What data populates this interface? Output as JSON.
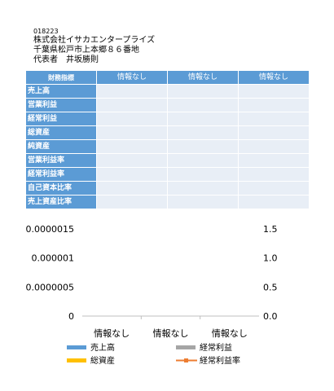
{
  "company": {
    "code": "018223",
    "name": "株式会社イサカエンタープライズ",
    "address": "千葉県松戸市上本郷８６番地",
    "representative": "代表者　井坂勝則"
  },
  "table": {
    "corner_label": "財務指標",
    "columns": [
      "情報なし",
      "情報なし",
      "情報なし"
    ],
    "rows": [
      {
        "label": "売上高",
        "values": [
          "",
          "",
          ""
        ]
      },
      {
        "label": "営業利益",
        "values": [
          "",
          "",
          ""
        ]
      },
      {
        "label": "経常利益",
        "values": [
          "",
          "",
          ""
        ]
      },
      {
        "label": "総資産",
        "values": [
          "",
          "",
          ""
        ]
      },
      {
        "label": "純資産",
        "values": [
          "",
          "",
          ""
        ]
      },
      {
        "label": "営業利益率",
        "values": [
          "",
          "",
          ""
        ]
      },
      {
        "label": "経常利益率",
        "values": [
          "",
          "",
          ""
        ]
      },
      {
        "label": "自己資本比率",
        "values": [
          "",
          "",
          ""
        ]
      },
      {
        "label": "売上資産比率",
        "values": [
          "",
          "",
          ""
        ]
      }
    ]
  },
  "chart_data": {
    "type": "bar",
    "categories": [
      "情報なし",
      "情報なし",
      "情報なし"
    ],
    "series": [
      {
        "name": "売上高",
        "values": [
          0,
          0,
          0
        ],
        "color": "#5b9bd5",
        "axis": "left",
        "kind": "bar"
      },
      {
        "name": "経常利益",
        "values": [
          0,
          0,
          0
        ],
        "color": "#a5a5a5",
        "axis": "left",
        "kind": "bar"
      },
      {
        "name": "総資産",
        "values": [
          0,
          0,
          0
        ],
        "color": "#ffc000",
        "axis": "left",
        "kind": "bar"
      },
      {
        "name": "経常利益率",
        "values": [
          0,
          0,
          0
        ],
        "color": "#ed7d31",
        "axis": "right",
        "kind": "line"
      }
    ],
    "y_left": {
      "ylim": [
        0,
        1.5e-06
      ],
      "ticks": [
        "0.0000015",
        "0.000001",
        "0.0000005",
        "0"
      ]
    },
    "y_right": {
      "ylim": [
        0,
        1.5
      ],
      "ticks": [
        "1.5",
        "1.0",
        "0.5",
        "0.0"
      ]
    },
    "legend_position": "bottom",
    "grid": false
  }
}
